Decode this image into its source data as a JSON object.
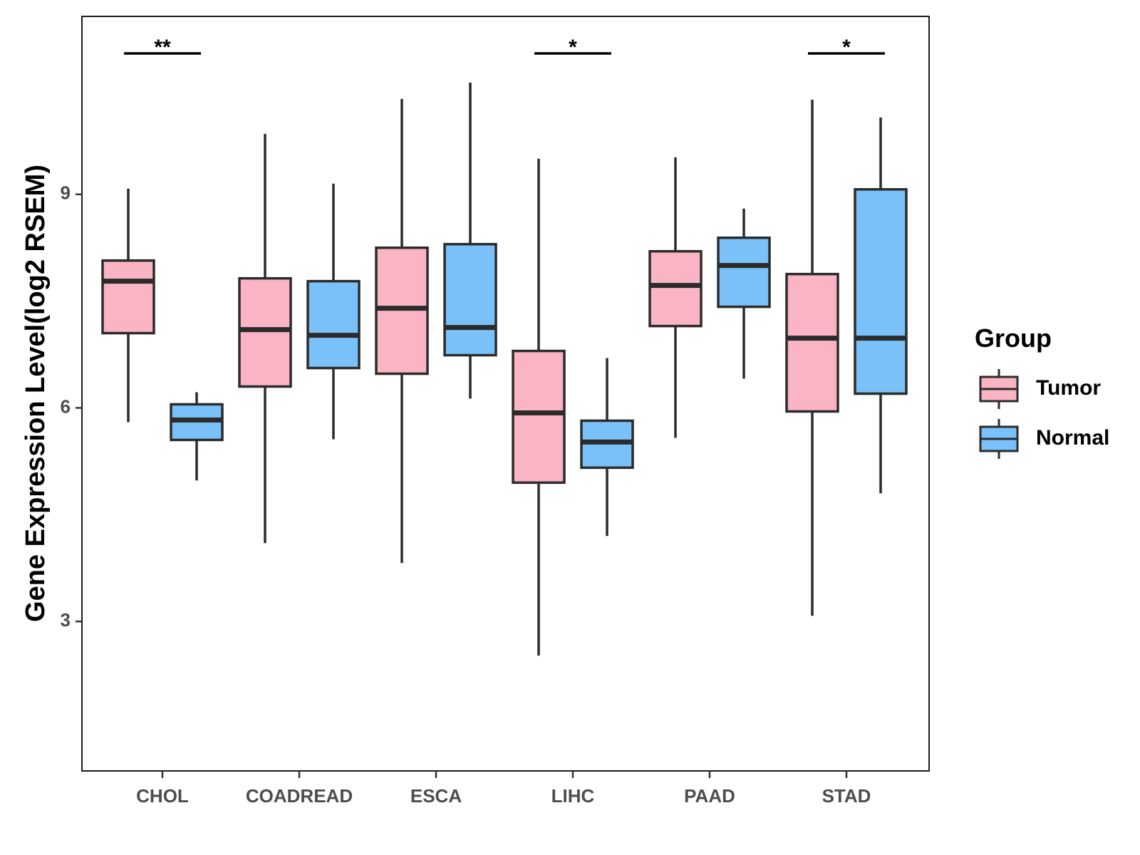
{
  "chart_data": {
    "type": "boxplot",
    "title": "",
    "xlabel": "",
    "ylabel": "Gene Expression Level(log2 RSEM)",
    "ylim": [
      0.9,
      11.5
    ],
    "yticks": [
      3,
      6,
      9
    ],
    "categories": [
      "CHOL",
      "COADREAD",
      "ESCA",
      "LIHC",
      "PAAD",
      "STAD"
    ],
    "legend": {
      "title": "Group",
      "position": "right",
      "entries": [
        "Tumor",
        "Normal"
      ]
    },
    "colors": {
      "Tumor": "#fbb4c4",
      "Normal": "#79c1f8",
      "outline": "#2b2b2b"
    },
    "series": [
      {
        "name": "Tumor",
        "boxes": [
          {
            "category": "CHOL",
            "min": 5.8,
            "q1": 7.05,
            "median": 7.78,
            "q3": 8.07,
            "max": 9.08
          },
          {
            "category": "COADREAD",
            "min": 4.1,
            "q1": 6.3,
            "median": 7.1,
            "q3": 7.82,
            "max": 9.85
          },
          {
            "category": "ESCA",
            "min": 3.82,
            "q1": 6.48,
            "median": 7.4,
            "q3": 8.25,
            "max": 10.34
          },
          {
            "category": "LIHC",
            "min": 2.52,
            "q1": 4.95,
            "median": 5.93,
            "q3": 6.8,
            "max": 9.5
          },
          {
            "category": "PAAD",
            "min": 5.58,
            "q1": 7.15,
            "median": 7.72,
            "q3": 8.2,
            "max": 9.52
          },
          {
            "category": "STAD",
            "min": 3.08,
            "q1": 5.95,
            "median": 6.98,
            "q3": 7.88,
            "max": 10.33
          }
        ]
      },
      {
        "name": "Normal",
        "boxes": [
          {
            "category": "CHOL",
            "min": 4.98,
            "q1": 5.55,
            "median": 5.83,
            "q3": 6.05,
            "max": 6.22
          },
          {
            "category": "COADREAD",
            "min": 5.56,
            "q1": 6.56,
            "median": 7.02,
            "q3": 7.78,
            "max": 9.15
          },
          {
            "category": "ESCA",
            "min": 6.13,
            "q1": 6.74,
            "median": 7.13,
            "q3": 8.3,
            "max": 10.57
          },
          {
            "category": "LIHC",
            "min": 4.2,
            "q1": 5.16,
            "median": 5.52,
            "q3": 5.82,
            "max": 6.7
          },
          {
            "category": "PAAD",
            "min": 6.41,
            "q1": 7.42,
            "median": 8.0,
            "q3": 8.39,
            "max": 8.8
          },
          {
            "category": "STAD",
            "min": 4.8,
            "q1": 6.2,
            "median": 6.98,
            "q3": 9.07,
            "max": 10.08
          }
        ]
      }
    ],
    "significance": [
      {
        "category": "CHOL",
        "label": "**"
      },
      {
        "category": "LIHC",
        "label": "*"
      },
      {
        "category": "STAD",
        "label": "*"
      }
    ]
  }
}
